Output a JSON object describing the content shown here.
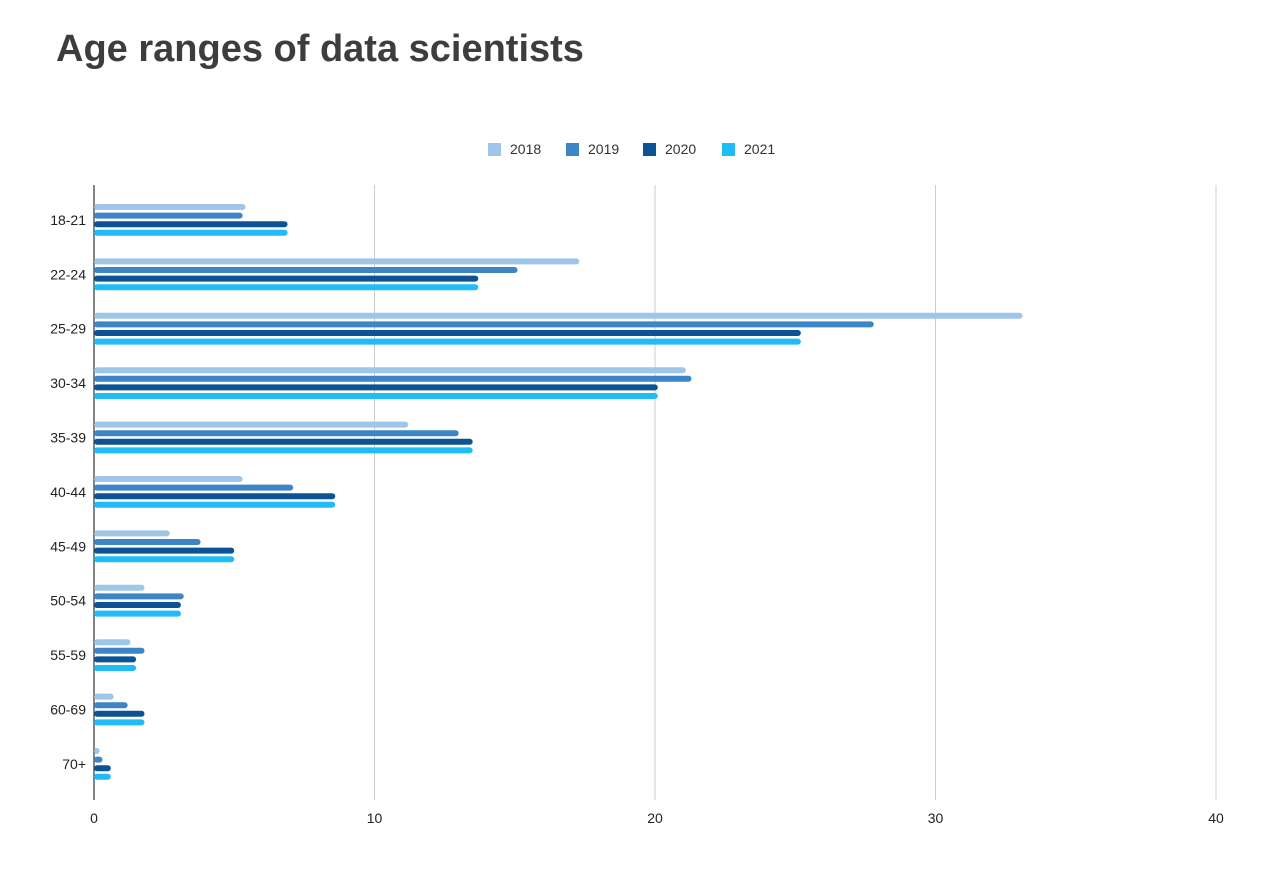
{
  "chart_data": {
    "type": "bar",
    "orientation": "horizontal",
    "title": "Age ranges of data scientists",
    "xlabel": "",
    "ylabel": "",
    "xlim": [
      0,
      40
    ],
    "x_ticks": [
      "0",
      "10",
      "20",
      "30",
      "40"
    ],
    "grid": true,
    "legend_position": "top-center",
    "categories": [
      "18-21",
      "22-24",
      "25-29",
      "30-34",
      "35-39",
      "40-44",
      "45-49",
      "50-54",
      "55-59",
      "60-69",
      "70+"
    ],
    "series": [
      {
        "name": "2018",
        "color": "#9fc5e8",
        "values": [
          5.4,
          17.3,
          33.1,
          21.1,
          11.2,
          5.3,
          2.7,
          1.8,
          1.3,
          0.7,
          0.2
        ]
      },
      {
        "name": "2019",
        "color": "#3d85c6",
        "values": [
          5.3,
          15.1,
          27.8,
          21.3,
          13.0,
          7.1,
          3.8,
          3.2,
          1.8,
          1.2,
          0.3
        ]
      },
      {
        "name": "2020",
        "color": "#0b5394",
        "values": [
          6.9,
          13.7,
          25.2,
          20.1,
          13.5,
          8.6,
          5.0,
          3.1,
          1.5,
          1.8,
          0.6
        ]
      },
      {
        "name": "2021",
        "color": "#1fbcf5",
        "values": [
          6.9,
          13.7,
          25.2,
          20.1,
          13.5,
          8.6,
          5.0,
          3.1,
          1.5,
          1.8,
          0.6
        ]
      }
    ]
  }
}
